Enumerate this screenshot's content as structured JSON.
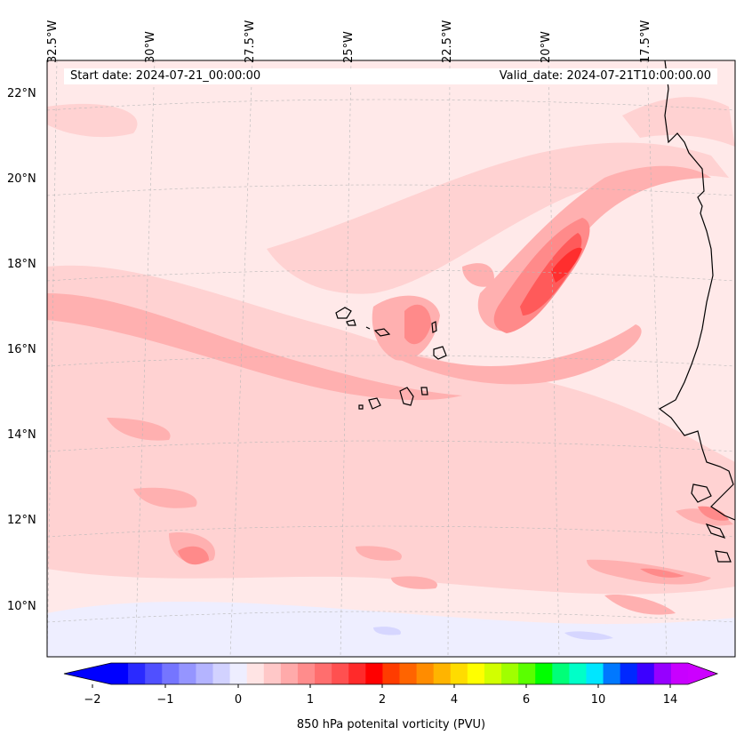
{
  "map": {
    "projection": "lambert-conformal",
    "field": "850 hPa potential vorticity",
    "start_date_text": "Start date: 2024-07-21_00:00:00",
    "valid_date_text": "Valid_date: 2024-07-21T10:00:00.00",
    "longitude_labels": [
      "32.5°W",
      "30°W",
      "27.5°W",
      "25°W",
      "22.5°W",
      "20°W",
      "17.5°W"
    ],
    "latitude_labels": [
      "22°N",
      "20°N",
      "18°N",
      "16°N",
      "14°N",
      "12°N",
      "10°N"
    ],
    "features": [
      "Cabo Verde islands",
      "West African coastline"
    ]
  },
  "colorbar": {
    "tick_labels": [
      "−2",
      "−1",
      "0",
      "1",
      "2",
      "4",
      "6",
      "10",
      "14"
    ],
    "label": "850 hPa potenital vorticity (PVU)",
    "colors": [
      "#0000ff",
      "#2a2aff",
      "#5050ff",
      "#7575ff",
      "#9595ff",
      "#b4b4ff",
      "#d2d2ff",
      "#eeeeff",
      "#ffe4e4",
      "#ffc8c8",
      "#ffaaaa",
      "#ff8c8c",
      "#ff6e6e",
      "#ff5050",
      "#ff2a2a",
      "#ff0000",
      "#ff3c00",
      "#ff6400",
      "#ff8c00",
      "#ffb400",
      "#ffdc00",
      "#ffff00",
      "#d2ff00",
      "#a0ff00",
      "#5aff00",
      "#00ff00",
      "#00ff78",
      "#00ffc8",
      "#00e6ff",
      "#0078ff",
      "#0028ff",
      "#3c00ff",
      "#9600ff",
      "#c800ff"
    ],
    "low_extend_color": "#0000ff",
    "high_extend_color": "#cc00ff"
  },
  "colors": {
    "background_field": "#ffe9e9",
    "level1": "#ffd2d2",
    "level2": "#ffb0b0",
    "level3": "#ff8a8a",
    "level4": "#ff5a5a",
    "level5": "#ff2e2e",
    "negative": "#eeeeff",
    "negative2": "#d6d6ff",
    "coast": "#000000"
  }
}
